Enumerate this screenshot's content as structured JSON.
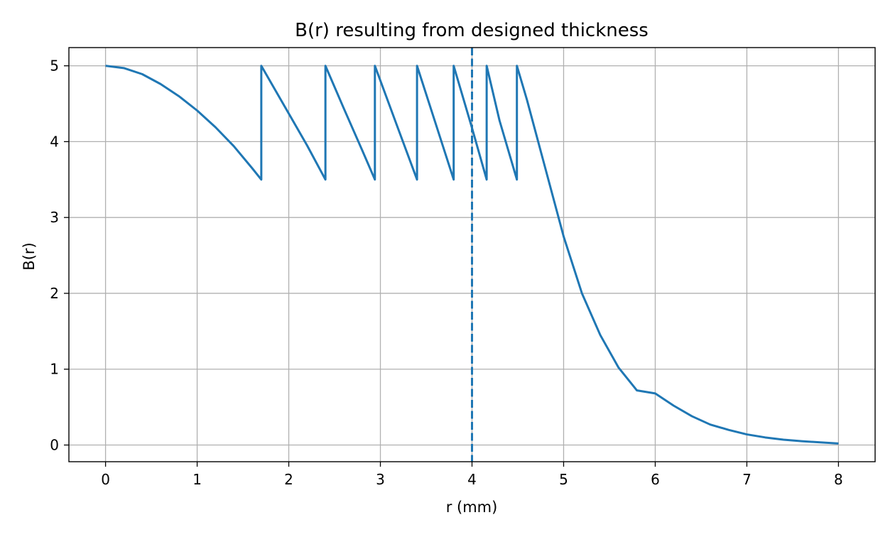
{
  "chart_data": {
    "type": "line",
    "title": "B(r) resulting from designed thickness",
    "xlabel": "r (mm)",
    "ylabel": "B(r)",
    "xlim": [
      -0.4,
      8.4
    ],
    "ylim": [
      -0.22,
      5.24
    ],
    "xticks": [
      0,
      1,
      2,
      3,
      4,
      5,
      6,
      7,
      8
    ],
    "yticks": [
      0,
      1,
      2,
      3,
      4,
      5
    ],
    "grid": true,
    "series": [
      {
        "color": "#1f77b4",
        "x": [
          0,
          0.2,
          0.4,
          0.6,
          0.8,
          1.0,
          1.2,
          1.4,
          1.6,
          1.7,
          1.7,
          2.0,
          2.2,
          2.4,
          2.4,
          2.6,
          2.8,
          2.94,
          2.94,
          3.2,
          3.4,
          3.4,
          3.6,
          3.8,
          3.8,
          4.0,
          4.16,
          4.16,
          4.3,
          4.49,
          4.49,
          4.6,
          4.8,
          5.0,
          5.2,
          5.4,
          5.6,
          5.8,
          6.0,
          6.2,
          6.4,
          6.6,
          6.8,
          7.0,
          7.2,
          7.4,
          7.6,
          7.8,
          8.0
        ],
        "y": [
          5.0,
          4.97,
          4.89,
          4.76,
          4.6,
          4.41,
          4.19,
          3.94,
          3.65,
          3.5,
          5.0,
          4.37,
          3.95,
          3.5,
          5.0,
          4.44,
          3.89,
          3.5,
          5.0,
          4.15,
          3.5,
          5.0,
          4.25,
          3.5,
          5.0,
          4.18,
          3.5,
          5.0,
          4.28,
          3.5,
          5.0,
          4.55,
          3.65,
          2.75,
          2.0,
          1.45,
          1.02,
          0.72,
          0.68,
          0.52,
          0.38,
          0.27,
          0.2,
          0.14,
          0.1,
          0.07,
          0.05,
          0.035,
          0.02
        ]
      }
    ],
    "vline": {
      "x": 4.0,
      "style": "dashed",
      "color": "#1f77b4"
    }
  }
}
